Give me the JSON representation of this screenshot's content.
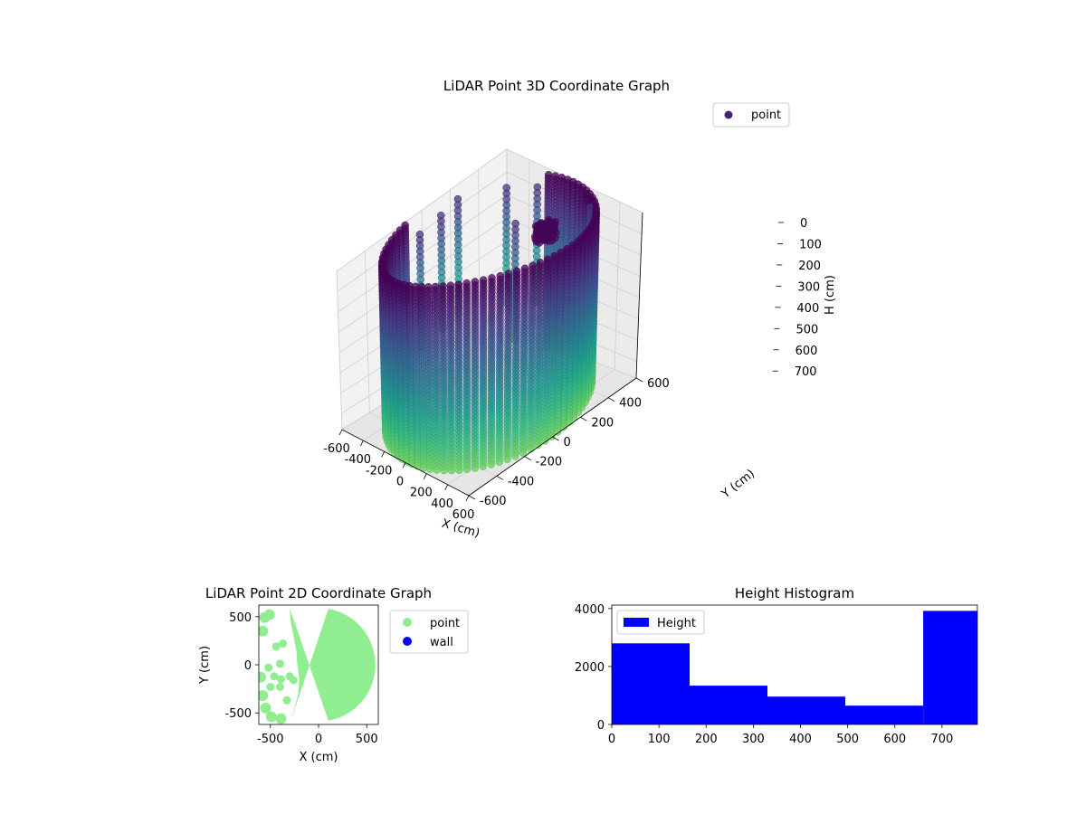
{
  "figure": {
    "background": "#ffffff"
  },
  "chart_data": [
    {
      "type": "scatter",
      "projection": "3d",
      "title": "LiDAR Point 3D Coordinate Graph",
      "xlabel": "X (cm)",
      "ylabel": "Y (cm)",
      "zlabel": "H (cm)",
      "xlim": [
        -600,
        600
      ],
      "ylim": [
        -600,
        600
      ],
      "zlim": [
        0,
        780
      ],
      "z_inverted": true,
      "x_ticks": [
        "-600",
        "-400",
        "-200",
        "0",
        "200",
        "400",
        "600"
      ],
      "y_ticks": [
        "-600",
        "-400",
        "-200",
        "0",
        "200",
        "400",
        "600"
      ],
      "z_ticks": [
        "0",
        "100",
        "200",
        "300",
        "400",
        "500",
        "600",
        "700"
      ],
      "colormap": "viridis",
      "grid": true,
      "legend": {
        "position": "top-right",
        "entries": [
          {
            "label": "point",
            "color": "#482475"
          }
        ]
      },
      "series": [
        {
          "name": "point",
          "shape": "cylindrical wall of points",
          "radius": 590,
          "gap_deg": [
            110,
            190
          ],
          "h_range": [
            0,
            780
          ],
          "angle_step_deg": 4.5,
          "h_step": 15
        }
      ],
      "clusters": [
        {
          "x": 150,
          "y": 280,
          "h": 40,
          "r": 60
        }
      ],
      "inner_columns": [
        {
          "x": -480,
          "y": 160
        },
        {
          "x": -440,
          "y": 10
        },
        {
          "x": -400,
          "y": -170
        },
        {
          "x": -300,
          "y": 360
        },
        {
          "x": -140,
          "y": 450
        },
        {
          "x": 300,
          "y": 470
        },
        {
          "x": 60,
          "y": 140
        }
      ]
    },
    {
      "type": "scatter",
      "title": "LiDAR Point 2D Coordinate Graph",
      "xlabel": "X (cm)",
      "ylabel": "Y (cm)",
      "xlim": [
        -620,
        620
      ],
      "ylim": [
        -620,
        620
      ],
      "x_ticks": [
        -500,
        0,
        500
      ],
      "y_ticks": [
        -500,
        0,
        500
      ],
      "legend": {
        "position": "outside-right",
        "entries": [
          {
            "label": "point",
            "color": "#90ee90"
          },
          {
            "label": "wall",
            "color": "#0000ff"
          }
        ]
      },
      "series": [
        {
          "name": "point",
          "color": "#90ee90",
          "disk_radius": 590,
          "boundary": [
            {
              "y": 590,
              "x": -300
            },
            {
              "y": 450,
              "x": -290
            },
            {
              "y": 300,
              "x": -260
            },
            {
              "y": 150,
              "x": -230
            },
            {
              "y": 0,
              "x": -220
            },
            {
              "y": -150,
              "x": -200
            },
            {
              "y": -300,
              "x": -210
            },
            {
              "y": -450,
              "x": -250
            },
            {
              "y": -590,
              "x": -290
            }
          ],
          "outer_blobs": [
            {
              "x": -560,
              "y": 490
            },
            {
              "x": -510,
              "y": 520
            },
            {
              "x": -580,
              "y": 350
            },
            {
              "x": -600,
              "y": -130
            },
            {
              "x": -580,
              "y": -320
            },
            {
              "x": -550,
              "y": -450
            },
            {
              "x": -490,
              "y": -540
            },
            {
              "x": -390,
              "y": -560
            }
          ],
          "inner_points": [
            {
              "x": -440,
              "y": 190
            },
            {
              "x": -370,
              "y": 220
            },
            {
              "x": -520,
              "y": -30
            },
            {
              "x": -400,
              "y": 10
            },
            {
              "x": -460,
              "y": -120
            },
            {
              "x": -390,
              "y": -150
            },
            {
              "x": -300,
              "y": -120
            },
            {
              "x": -500,
              "y": -230
            },
            {
              "x": -400,
              "y": -230
            },
            {
              "x": -260,
              "y": -160
            },
            {
              "x": -330,
              "y": -370
            }
          ]
        },
        {
          "name": "wall",
          "color": "#0000ff",
          "values": []
        }
      ]
    },
    {
      "type": "bar",
      "subtype": "histogram",
      "title": "Height Histogram",
      "bin_edges": [
        0,
        165,
        330,
        495,
        660,
        775
      ],
      "counts": [
        2800,
        1340,
        960,
        650,
        3920
      ],
      "color": "#0000ff",
      "xlim": [
        0,
        775
      ],
      "ylim": [
        0,
        4120
      ],
      "x_ticks": [
        0,
        100,
        200,
        300,
        400,
        500,
        600,
        700
      ],
      "y_ticks": [
        0,
        2000,
        4000
      ],
      "legend": {
        "position": "top-left",
        "entries": [
          {
            "label": "Height",
            "color": "#0000ff"
          }
        ]
      }
    }
  ]
}
